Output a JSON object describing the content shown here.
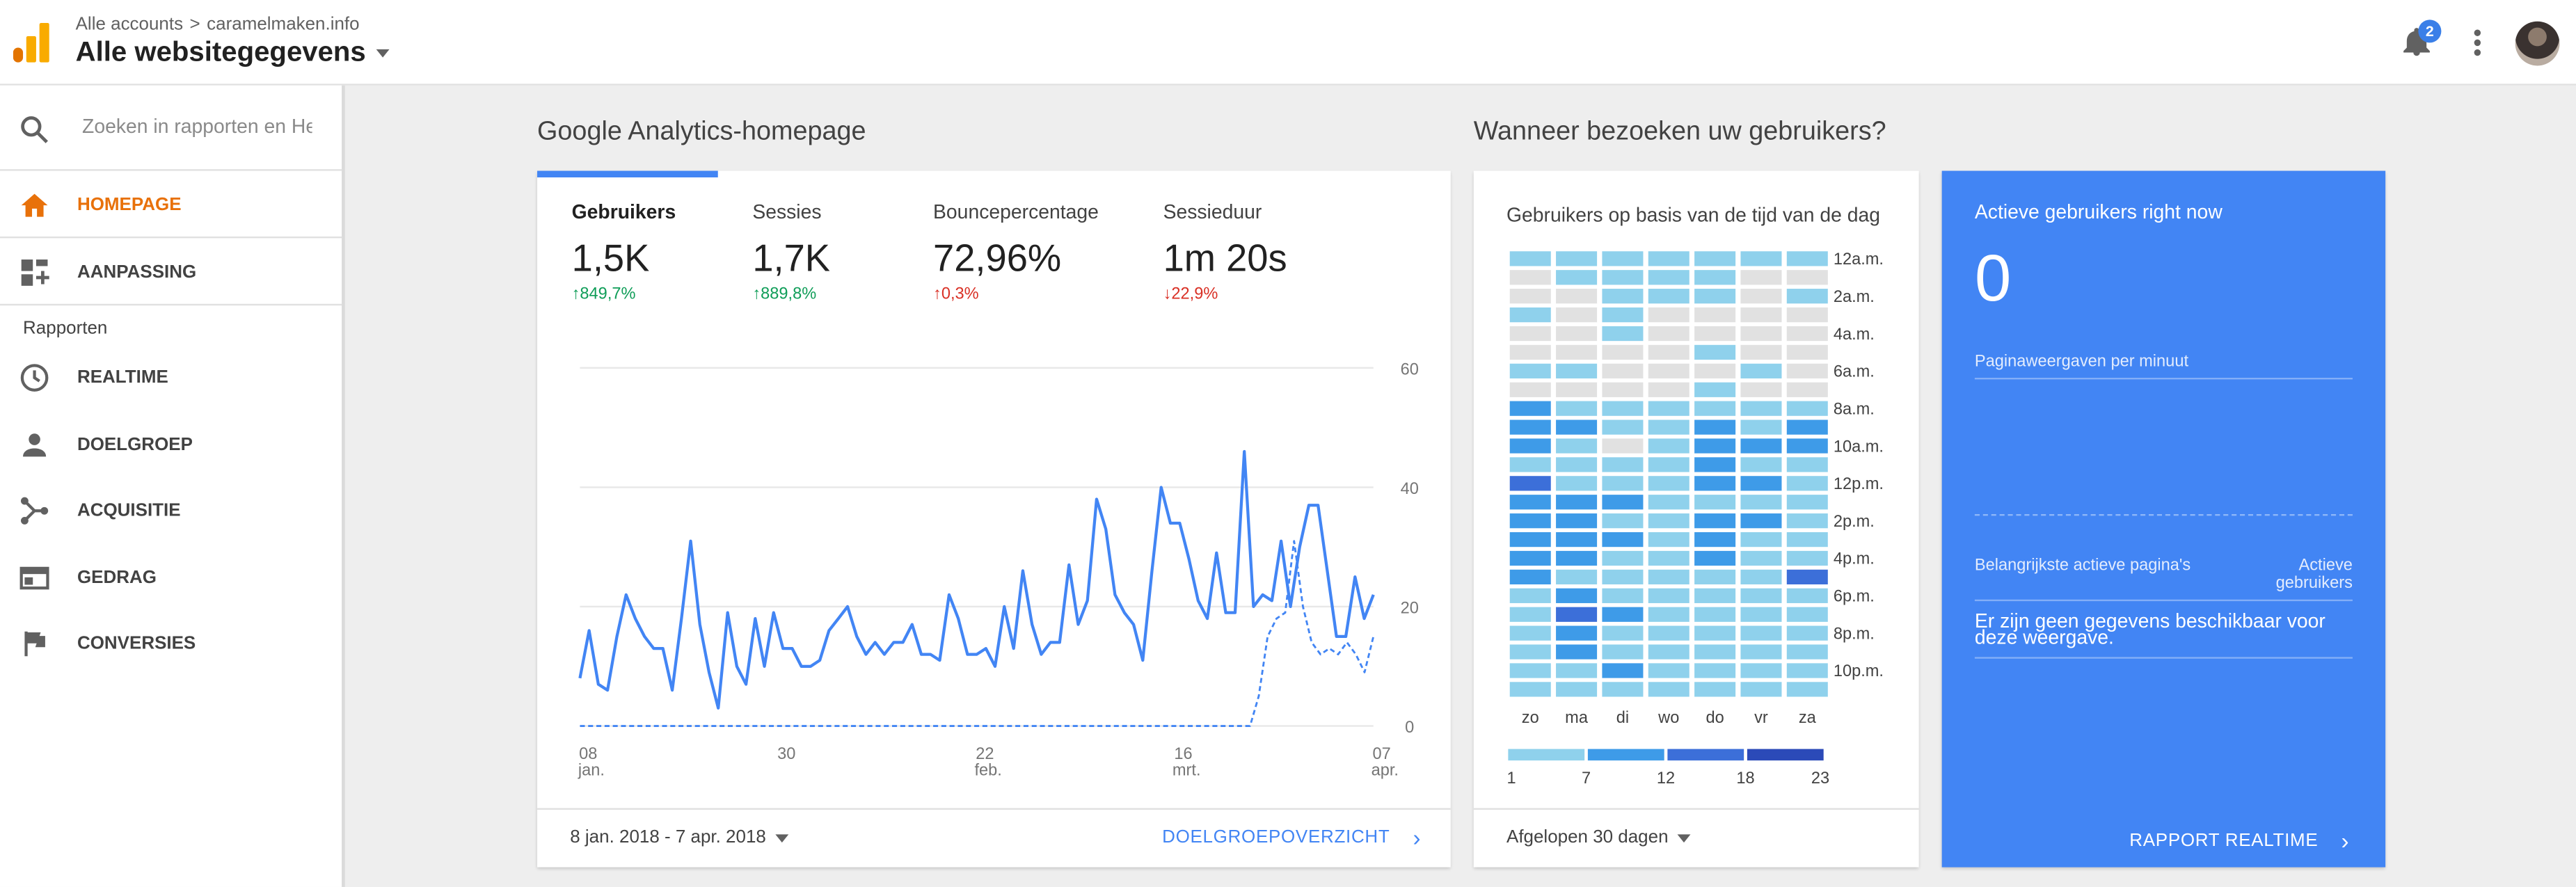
{
  "header": {
    "breadcrumb_account": "Alle accounts",
    "breadcrumb_separator": ">",
    "breadcrumb_site": "caramelmaken.info",
    "property": "Alle websitegegevens",
    "notification_count": "2"
  },
  "sidebar": {
    "search_placeholder": "Zoeken in rapporten en Help",
    "home": "HOMEPAGE",
    "customization": "AANPASSING",
    "section": "Rapporten",
    "realtime": "REALTIME",
    "audience": "DOELGROEP",
    "acquisition": "ACQUISITIE",
    "behavior": "GEDRAG",
    "conversions": "CONVERSIES"
  },
  "main": {
    "heading": "Google Analytics-homepage",
    "metrics": [
      {
        "name": "Gebruikers",
        "value": "1,5K",
        "change": "849,7%",
        "direction": "up"
      },
      {
        "name": "Sessies",
        "value": "1,7K",
        "change": "889,8%",
        "direction": "up"
      },
      {
        "name": "Bouncepercentage",
        "value": "72,96%",
        "change": "0,3%",
        "direction": "up"
      },
      {
        "name": "Sessieduur",
        "value": "1m 20s",
        "change": "22,9%",
        "direction": "down"
      }
    ],
    "date_range": "8 jan. 2018 - 7 apr. 2018",
    "link": "DOELGROEPOVERZICHT"
  },
  "chart_data": {
    "type": "line",
    "x_ticks": [
      {
        "day": "08",
        "month": "jan."
      },
      {
        "day": "30",
        "month": ""
      },
      {
        "day": "22",
        "month": "feb."
      },
      {
        "day": "16",
        "month": "mrt."
      },
      {
        "day": "07",
        "month": "apr."
      }
    ],
    "y_ticks": [
      "60",
      "40",
      "20",
      "0"
    ],
    "ylim": [
      0,
      60
    ],
    "series": [
      {
        "style": "solid",
        "values": [
          8,
          16,
          7,
          6,
          15,
          22,
          18,
          15,
          13,
          13,
          6,
          18,
          31,
          17,
          9,
          3,
          19,
          10,
          7,
          18,
          10,
          19,
          13,
          13,
          10,
          10,
          11,
          16,
          18,
          20,
          15,
          12,
          14,
          12,
          14,
          14,
          17,
          12,
          12,
          11,
          22,
          18,
          12,
          12,
          13,
          10,
          20,
          13,
          26,
          17,
          12,
          14,
          14,
          27,
          17,
          21,
          38,
          33,
          22,
          19,
          17,
          11,
          26,
          40,
          34,
          34,
          28,
          21,
          18,
          29,
          19,
          19,
          46,
          20,
          22,
          21,
          31,
          20,
          30,
          37,
          37,
          26,
          15,
          15,
          25,
          18,
          22
        ],
        "color": "#4285f4"
      },
      {
        "style": "dashed",
        "values": [
          0,
          0,
          0,
          0,
          0,
          0,
          0,
          0,
          0,
          0,
          0,
          0,
          0,
          0,
          0,
          0,
          0,
          0,
          0,
          0,
          0,
          0,
          0,
          0,
          0,
          0,
          0,
          0,
          0,
          0,
          0,
          0,
          0,
          0,
          0,
          0,
          0,
          0,
          0,
          0,
          0,
          0,
          0,
          0,
          0,
          0,
          0,
          0,
          0,
          0,
          0,
          0,
          0,
          0,
          0,
          0,
          0,
          0,
          0,
          0,
          0,
          0,
          0,
          0,
          0,
          0,
          0,
          0,
          0,
          0,
          0,
          0,
          0,
          0,
          0,
          0,
          0,
          5,
          15,
          18,
          19,
          31,
          20,
          14,
          12,
          13,
          12,
          14,
          12,
          9,
          15
        ],
        "color": "#4285f4"
      }
    ]
  },
  "heatmap": {
    "heading": "Wanneer bezoeken uw gebruikers?",
    "title": "Gebruikers op basis van de tijd van de dag",
    "days": [
      "zo",
      "ma",
      "di",
      "wo",
      "do",
      "vr",
      "za"
    ],
    "hour_labels": [
      "12a.m.",
      "2a.m.",
      "4a.m.",
      "6a.m.",
      "8a.m.",
      "10a.m.",
      "12p.m.",
      "2p.m.",
      "4p.m.",
      "6p.m.",
      "8p.m.",
      "10p.m."
    ],
    "legend": [
      "1",
      "7",
      "12",
      "18",
      "23"
    ],
    "range": "Afgelopen 30 dagen",
    "levels": [
      [
        1,
        1,
        1,
        1,
        1,
        1,
        1
      ],
      [
        0,
        1,
        1,
        1,
        1,
        0,
        0
      ],
      [
        0,
        0,
        1,
        1,
        1,
        0,
        1
      ],
      [
        1,
        0,
        1,
        0,
        0,
        0,
        0
      ],
      [
        0,
        0,
        1,
        0,
        0,
        0,
        0
      ],
      [
        0,
        0,
        0,
        0,
        1,
        0,
        0
      ],
      [
        1,
        1,
        0,
        0,
        0,
        1,
        0
      ],
      [
        0,
        0,
        0,
        0,
        1,
        0,
        0
      ],
      [
        2,
        1,
        1,
        1,
        1,
        1,
        1
      ],
      [
        2,
        2,
        1,
        1,
        2,
        1,
        2
      ],
      [
        2,
        1,
        0,
        1,
        2,
        2,
        2
      ],
      [
        1,
        1,
        1,
        1,
        2,
        1,
        1
      ],
      [
        3,
        1,
        1,
        1,
        2,
        2,
        1
      ],
      [
        2,
        2,
        2,
        1,
        1,
        1,
        1
      ],
      [
        2,
        2,
        1,
        1,
        2,
        2,
        1
      ],
      [
        2,
        2,
        2,
        1,
        2,
        1,
        1
      ],
      [
        2,
        2,
        1,
        1,
        2,
        1,
        1
      ],
      [
        2,
        1,
        1,
        1,
        1,
        1,
        3
      ],
      [
        1,
        2,
        1,
        1,
        1,
        1,
        1
      ],
      [
        1,
        3,
        2,
        1,
        1,
        1,
        1
      ],
      [
        1,
        2,
        1,
        1,
        1,
        1,
        1
      ],
      [
        1,
        2,
        1,
        1,
        1,
        1,
        1
      ],
      [
        1,
        1,
        2,
        1,
        1,
        1,
        1
      ],
      [
        1,
        1,
        1,
        1,
        1,
        1,
        1
      ]
    ],
    "palette": [
      "#e1e1e1",
      "#8fd1ec",
      "#3e9be8",
      "#3c6fd9",
      "#2b4ab8"
    ]
  },
  "realtime": {
    "title": "Actieve gebruikers right now",
    "value": "0",
    "pageviews_label": "Paginaweergaven per minuut",
    "col_pages": "Belangrijkste actieve pagina's",
    "col_users": "Actieve gebruikers",
    "no_data": "Er zijn geen gegevens beschikbaar voor deze weergave.",
    "link": "RAPPORT REALTIME"
  }
}
